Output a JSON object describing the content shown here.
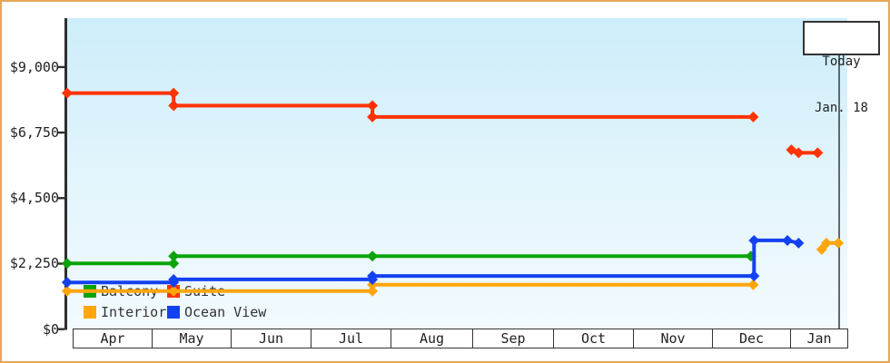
{
  "window": {
    "frame_border_color": "#E8A65A",
    "background": "#FFFFFF"
  },
  "today_box": {
    "line1": "Today",
    "line2": "Jan. 18"
  },
  "legend": {
    "position": "bottom-left-inside",
    "items": [
      {
        "label": "Balcony",
        "color": "#0AA40A"
      },
      {
        "label": "Suite",
        "color": "#FF3300"
      },
      {
        "label": "Interior",
        "color": "#FFA60D"
      },
      {
        "label": "Ocean View",
        "color": "#1441F0"
      }
    ]
  },
  "chart_data": {
    "type": "line",
    "title": "",
    "xlabel": "",
    "ylabel": "",
    "style": "step-lines with diamond markers, price-history chart",
    "grid": false,
    "x_categories": [
      "Apr",
      "May",
      "Jun",
      "Jul",
      "Aug",
      "Sep",
      "Oct",
      "Nov",
      "Dec",
      "Jan"
    ],
    "y_ticks": [
      {
        "label": "$9,000",
        "value": 9000
      },
      {
        "label": "$6,750",
        "value": 6750
      },
      {
        "label": "$4,500",
        "value": 4500
      },
      {
        "label": "$2,250",
        "value": 2250
      },
      {
        "label": "$0",
        "value": 0
      }
    ],
    "y_axis": {
      "min": 0,
      "max_visible": 9380,
      "tick_interval": 2250
    },
    "today_marker": {
      "label": "Today Jan. 18",
      "month_frac": 9.64
    },
    "series_note": "m = months after start of Apr (fractional position on x axis); usd = price in dollars (read from axis)",
    "series": [
      {
        "name": "Suite",
        "color": "#FF3300",
        "segments": [
          [
            {
              "m": -0.07,
              "usd": 8100
            },
            {
              "m": 1.27,
              "usd": 8100
            },
            {
              "m": 1.27,
              "usd": 7670
            },
            {
              "m": 3.77,
              "usd": 7670
            },
            {
              "m": 3.77,
              "usd": 7280
            },
            {
              "m": 8.56,
              "usd": 7280
            }
          ],
          [
            {
              "m": 9.04,
              "usd": 6150
            },
            {
              "m": 9.13,
              "usd": 6050
            },
            {
              "m": 9.37,
              "usd": 6050
            }
          ]
        ]
      },
      {
        "name": "Balcony",
        "color": "#0AA40A",
        "segments": [
          [
            {
              "m": -0.07,
              "usd": 2250
            },
            {
              "m": 1.27,
              "usd": 2250
            },
            {
              "m": 1.27,
              "usd": 2500
            },
            {
              "m": 3.77,
              "usd": 2500
            },
            {
              "m": 8.53,
              "usd": 2500
            }
          ]
        ]
      },
      {
        "name": "Interior",
        "color": "#FFA60D",
        "segments": [
          [
            {
              "m": -0.07,
              "usd": 1300
            },
            {
              "m": 1.27,
              "usd": 1300
            },
            {
              "m": 3.77,
              "usd": 1300
            },
            {
              "m": 3.77,
              "usd": 1520
            },
            {
              "m": 8.56,
              "usd": 1520
            }
          ],
          [
            {
              "m": 9.42,
              "usd": 2730
            },
            {
              "m": 9.48,
              "usd": 2950
            },
            {
              "m": 9.63,
              "usd": 2950
            }
          ]
        ]
      },
      {
        "name": "Ocean View",
        "color": "#1441F0",
        "segments": [
          [
            {
              "m": -0.07,
              "usd": 1600
            },
            {
              "m": 1.27,
              "usd": 1600
            },
            {
              "m": 1.27,
              "usd": 1700
            },
            {
              "m": 3.77,
              "usd": 1700
            },
            {
              "m": 3.77,
              "usd": 1820
            },
            {
              "m": 8.57,
              "usd": 1820
            },
            {
              "m": 8.57,
              "usd": 3040
            },
            {
              "m": 8.99,
              "usd": 3040
            },
            {
              "m": 9.13,
              "usd": 2950
            }
          ]
        ]
      }
    ]
  }
}
